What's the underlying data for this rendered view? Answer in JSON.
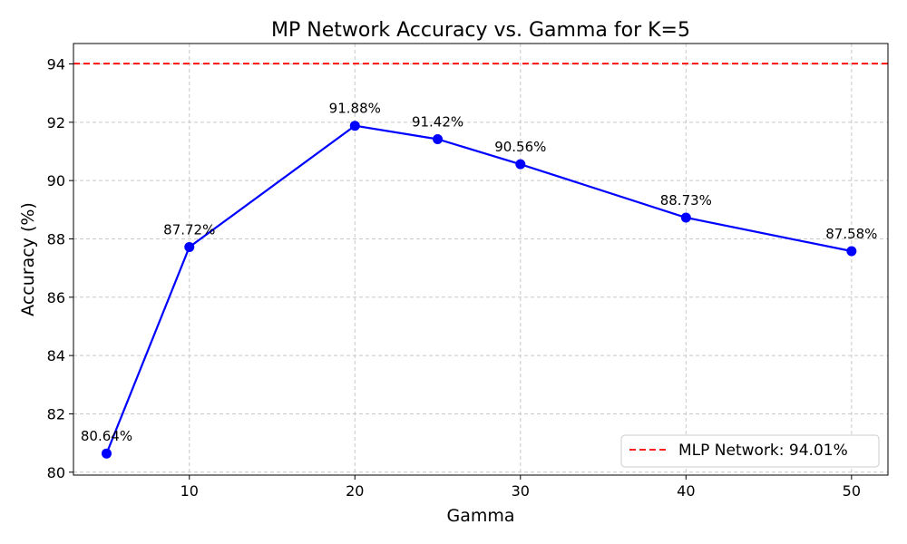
{
  "chart_data": {
    "type": "line",
    "title": "MP Network Accuracy vs. Gamma for K=5",
    "xlabel": "Gamma",
    "ylabel": "Accuracy (%)",
    "xlim": [
      3,
      52.2
    ],
    "ylim": [
      79.9,
      94.7
    ],
    "xticks": [
      10,
      20,
      30,
      40,
      50
    ],
    "yticks": [
      80,
      82,
      84,
      86,
      88,
      90,
      92,
      94
    ],
    "grid": true,
    "legend_position": "bottom-right",
    "series": [
      {
        "name": "",
        "color": "#0000ff",
        "marker": "circle",
        "x": [
          5,
          10,
          20,
          25,
          30,
          40,
          50
        ],
        "y": [
          80.64,
          87.72,
          91.88,
          91.42,
          90.56,
          88.73,
          87.58
        ],
        "labels": [
          "80.64%",
          "87.72%",
          "91.88%",
          "91.42%",
          "90.56%",
          "88.73%",
          "87.58%"
        ]
      }
    ],
    "reference_lines": [
      {
        "name": "MLP Network: 94.01%",
        "y": 94.01,
        "color": "#ff0000",
        "style": "dashed"
      }
    ]
  }
}
